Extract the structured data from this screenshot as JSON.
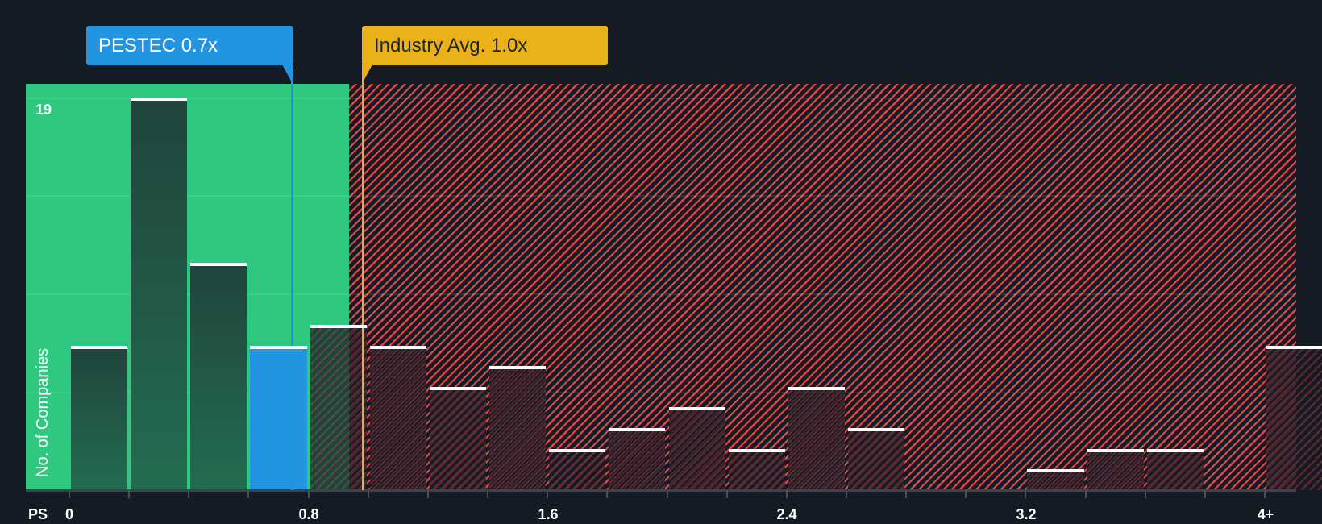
{
  "chart_data": {
    "type": "bar",
    "title": "",
    "xlabel": "PS",
    "ylabel": "No. of Companies",
    "x_tick_labels": [
      "0",
      "0.8",
      "1.6",
      "2.4",
      "3.2",
      "4+"
    ],
    "y_tick_labels": [
      "19"
    ],
    "ylim": [
      0,
      19
    ],
    "grid": true,
    "bin_width": 0.2,
    "categories": [
      "0-0.2",
      "0.2-0.4",
      "0.4-0.6",
      "0.6-0.8",
      "0.8-1.0",
      "1.0-1.2",
      "1.2-1.4",
      "1.4-1.6",
      "1.6-1.8",
      "1.8-2.0",
      "2.0-2.2",
      "2.2-2.4",
      "2.4-2.6",
      "2.6-2.8",
      "2.8-3.0",
      "3.0-3.2",
      "3.2-3.4",
      "3.4-3.6",
      "3.6-3.8",
      "3.8-4.0",
      "4+"
    ],
    "values": [
      7,
      19,
      11,
      7,
      8,
      7,
      5,
      6,
      2,
      3,
      4,
      2,
      5,
      3,
      0,
      0,
      1,
      2,
      2,
      0,
      7
    ],
    "highlight_bin_index": 3,
    "annotations": [
      {
        "label": "PESTEC 0.7x",
        "x": 0.7,
        "color": "#2395e0"
      },
      {
        "label": "Industry Avg. 1.0x",
        "x": 1.0,
        "color": "#ebb11a"
      }
    ],
    "zones": [
      {
        "name": "below-average",
        "from": 0,
        "to": 0.93,
        "color": "#2ec880"
      },
      {
        "name": "above-average",
        "from": 0.93,
        "to": 4.2,
        "color": "#e04848",
        "pattern": "diagonal-hatch"
      }
    ]
  },
  "labels": {
    "company_callout": "PESTEC 0.7x",
    "industry_callout": "Industry Avg. 1.0x",
    "y_axis_title": "No. of Companies",
    "y_top_value": "19",
    "x_axis_title": "PS",
    "x_ticks": [
      "0",
      "0.8",
      "1.6",
      "2.4",
      "3.2",
      "4+"
    ]
  },
  "colors": {
    "background": "#151b24",
    "green_zone": "#2ec880",
    "company_blue": "#2395e0",
    "industry_gold": "#ebb11a",
    "hatch_red": "#e04848"
  }
}
